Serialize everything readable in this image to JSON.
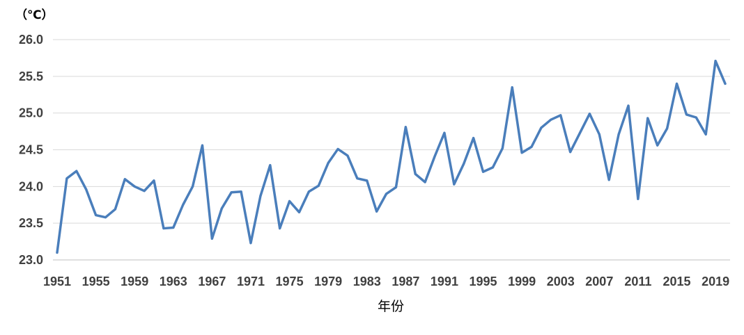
{
  "chart_data": {
    "type": "line",
    "ylabel": "（℃）",
    "xlabel": "年份",
    "ylim": [
      23.0,
      26.0
    ],
    "yticks": [
      "23.0",
      "23.5",
      "24.0",
      "24.5",
      "25.0",
      "25.5",
      "26.0"
    ],
    "xticks": [
      "1951",
      "1955",
      "1959",
      "1963",
      "1967",
      "1971",
      "1975",
      "1979",
      "1983",
      "1987",
      "1991",
      "1995",
      "1999",
      "2003",
      "2007",
      "2011",
      "2015",
      "2019"
    ],
    "grid": true,
    "x": [
      1951,
      1952,
      1953,
      1954,
      1955,
      1956,
      1957,
      1958,
      1959,
      1960,
      1961,
      1962,
      1963,
      1964,
      1965,
      1966,
      1967,
      1968,
      1969,
      1970,
      1971,
      1972,
      1973,
      1974,
      1975,
      1976,
      1977,
      1978,
      1979,
      1980,
      1981,
      1982,
      1983,
      1984,
      1985,
      1986,
      1987,
      1988,
      1989,
      1990,
      1991,
      1992,
      1993,
      1994,
      1995,
      1996,
      1997,
      1998,
      1999,
      2000,
      2001,
      2002,
      2003,
      2004,
      2005,
      2006,
      2007,
      2008,
      2009,
      2010,
      2011,
      2012,
      2013,
      2014,
      2015,
      2016,
      2017,
      2018,
      2019,
      2020
    ],
    "series": [
      {
        "values": [
          23.1,
          24.11,
          24.21,
          23.96,
          23.61,
          23.58,
          23.69,
          24.1,
          24.0,
          23.94,
          24.08,
          23.43,
          23.44,
          23.75,
          24.0,
          24.56,
          23.29,
          23.7,
          23.92,
          23.93,
          23.23,
          23.87,
          24.29,
          23.43,
          23.8,
          23.65,
          23.93,
          24.01,
          24.32,
          24.51,
          24.42,
          24.11,
          24.08,
          23.66,
          23.9,
          23.99,
          24.81,
          24.17,
          24.06,
          24.41,
          24.73,
          24.03,
          24.31,
          24.66,
          24.2,
          24.26,
          24.52,
          25.35,
          24.46,
          24.54,
          24.8,
          24.91,
          24.97,
          24.47,
          24.73,
          24.99,
          24.71,
          24.09,
          24.71,
          25.1,
          23.83,
          24.93,
          24.56,
          24.79,
          25.4,
          24.98,
          24.94,
          24.71,
          25.71,
          25.4
        ]
      }
    ],
    "line_color": "#4A7EBB",
    "grid_color": "#D9D9D9"
  }
}
